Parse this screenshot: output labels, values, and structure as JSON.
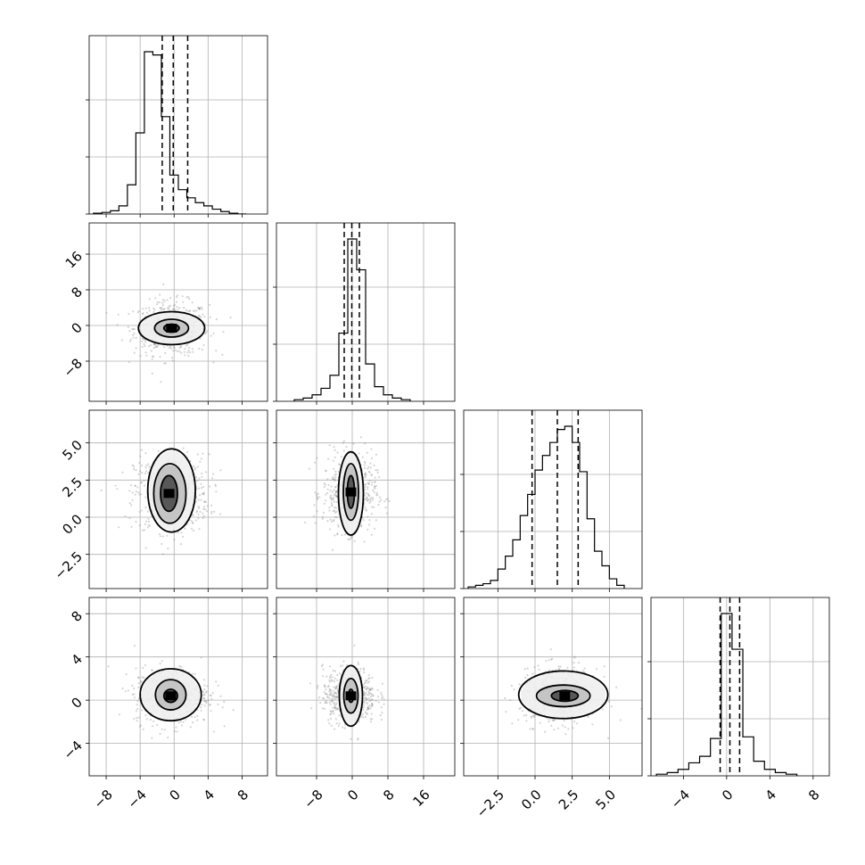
{
  "chart_data": {
    "type": "corner",
    "n_params": 4,
    "params": [
      {
        "index": 0,
        "range": [
          -10,
          11
        ],
        "ticks": [
          -8,
          -4,
          0,
          4,
          8
        ],
        "tick_labels": [
          "−8",
          "−4",
          "0",
          "4",
          "8"
        ],
        "quantiles": [
          -1.4,
          -0.1,
          1.6
        ],
        "hist_bin_edges": [
          -9.5,
          -8.5,
          -7.5,
          -6.5,
          -5.5,
          -4.5,
          -3.5,
          -2.5,
          -1.5,
          -0.5,
          0.5,
          1.5,
          2.5,
          3.5,
          4.5,
          5.5,
          6.5,
          7.5,
          8.5
        ],
        "hist_counts": [
          0.005,
          0.01,
          0.02,
          0.05,
          0.18,
          0.5,
          1.0,
          0.98,
          0.6,
          0.24,
          0.15,
          0.1,
          0.07,
          0.05,
          0.03,
          0.015,
          0.005,
          0.0
        ]
      },
      {
        "index": 1,
        "range": [
          -17,
          23
        ],
        "ticks": [
          -8,
          0,
          8,
          16
        ],
        "tick_labels": [
          "−8",
          "0",
          "8",
          "16"
        ],
        "quantiles": [
          -1.8,
          -0.1,
          1.6
        ],
        "hist_bin_edges": [
          -13,
          -11,
          -9,
          -7,
          -5,
          -3,
          -1,
          1,
          3,
          5,
          7,
          9,
          11,
          13
        ],
        "hist_counts": [
          0.01,
          0.02,
          0.04,
          0.08,
          0.16,
          0.42,
          1.0,
          0.81,
          0.23,
          0.09,
          0.04,
          0.02,
          0.01
        ]
      },
      {
        "index": 2,
        "range": [
          -4.8,
          7.2
        ],
        "ticks": [
          -2.5,
          0.0,
          2.5,
          5.0
        ],
        "tick_labels": [
          "−2.5",
          "0.0",
          "2.5",
          "5.0"
        ],
        "quantiles": [
          -0.2,
          1.5,
          2.9
        ],
        "hist_bin_edges": [
          -4.5,
          -4,
          -3.5,
          -3,
          -2.5,
          -2,
          -1.5,
          -1,
          -0.5,
          0,
          0.5,
          1,
          1.5,
          2,
          2.5,
          3,
          3.5,
          4,
          4.5,
          5,
          5.5,
          6
        ],
        "hist_counts": [
          0.01,
          0.02,
          0.03,
          0.05,
          0.12,
          0.2,
          0.3,
          0.45,
          0.58,
          0.73,
          0.82,
          0.9,
          0.98,
          1.0,
          0.9,
          0.72,
          0.43,
          0.23,
          0.14,
          0.06,
          0.02
        ]
      },
      {
        "index": 3,
        "range": [
          -7,
          9.5
        ],
        "ticks": [
          -4,
          0,
          4,
          8
        ],
        "tick_labels": [
          "−4",
          "0",
          "4",
          "8"
        ],
        "quantiles": [
          -0.6,
          0.3,
          1.2
        ],
        "hist_bin_edges": [
          -6.5,
          -5.5,
          -4.5,
          -3.5,
          -2.5,
          -1.5,
          -0.5,
          0.5,
          1.5,
          2.5,
          3.5,
          4.5,
          5.5,
          6.5
        ],
        "hist_counts": [
          0.01,
          0.02,
          0.04,
          0.08,
          0.12,
          0.23,
          1.0,
          0.78,
          0.24,
          0.09,
          0.04,
          0.02,
          0.01
        ]
      }
    ],
    "posterior": {
      "means": [
        -0.3,
        -0.6,
        1.6,
        0.4
      ],
      "stds": [
        2.2,
        3.0,
        1.3,
        1.3
      ]
    },
    "contours": {
      "0_1": [
        {
          "center": [
            -0.3,
            -0.6
          ],
          "radii": [
            3.9,
            3.7
          ]
        },
        {
          "center": [
            -0.3,
            -0.6
          ],
          "radii": [
            2.0,
            2.0
          ]
        },
        {
          "center": [
            -0.3,
            -0.6
          ],
          "radii": [
            0.9,
            0.9
          ]
        }
      ],
      "0_2": [
        {
          "center": [
            -0.3,
            1.8
          ],
          "radii": [
            2.8,
            2.8
          ]
        },
        {
          "center": [
            -0.5,
            1.6
          ],
          "radii": [
            1.9,
            2.0
          ]
        },
        {
          "center": [
            -0.6,
            1.6
          ],
          "radii": [
            1.0,
            1.2
          ]
        }
      ],
      "1_2": [
        {
          "center": [
            -0.3,
            1.6
          ],
          "radii": [
            2.8,
            2.8
          ]
        },
        {
          "center": [
            -0.3,
            1.7
          ],
          "radii": [
            1.7,
            1.9
          ]
        },
        {
          "center": [
            -0.3,
            1.7
          ],
          "radii": [
            0.8,
            1.1
          ]
        }
      ],
      "0_3": [
        {
          "center": [
            -0.4,
            0.5
          ],
          "radii": [
            3.6,
            2.4
          ]
        },
        {
          "center": [
            -0.4,
            0.5
          ],
          "radii": [
            1.8,
            1.4
          ]
        },
        {
          "center": [
            -0.4,
            0.4
          ],
          "radii": [
            0.8,
            0.6
          ]
        }
      ],
      "1_3": [
        {
          "center": [
            -0.3,
            0.4
          ],
          "radii": [
            2.6,
            2.8
          ]
        },
        {
          "center": [
            -0.3,
            0.4
          ],
          "radii": [
            1.6,
            1.6
          ]
        },
        {
          "center": [
            -0.3,
            0.4
          ],
          "radii": [
            0.6,
            0.6
          ]
        }
      ],
      "2_3": [
        {
          "center": [
            1.9,
            0.5
          ],
          "radii": [
            3.0,
            2.2
          ]
        },
        {
          "center": [
            1.9,
            0.4
          ],
          "radii": [
            1.8,
            1.0
          ]
        },
        {
          "center": [
            2.0,
            0.4
          ],
          "radii": [
            0.9,
            0.5
          ]
        }
      ]
    }
  }
}
